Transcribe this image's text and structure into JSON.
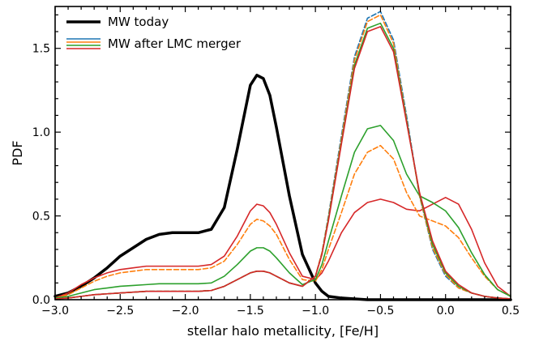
{
  "chart_data": {
    "type": "line",
    "title": "",
    "xlabel": "stellar halo metallicity,  [Fe/H]",
    "ylabel": "PDF",
    "xlim": [
      -3.0,
      0.5
    ],
    "ylim": [
      0.0,
      1.75
    ],
    "xticks": [
      -3.0,
      -2.5,
      -2.0,
      -1.5,
      -1.0,
      -0.5,
      0.0,
      0.5
    ],
    "xtick_labels": [
      "−3.0",
      "−2.5",
      "−2.0",
      "−1.5",
      "−1.0",
      "−0.5",
      "0.0",
      "0.5"
    ],
    "yticks": [
      0.0,
      0.5,
      1.0,
      1.5
    ],
    "ytick_labels": [
      "0.0",
      "0.5",
      "1.0",
      "1.5"
    ],
    "grid": false,
    "legend": {
      "placement": "top-left",
      "entries": [
        {
          "label": "MW today",
          "colors": [
            "#000000"
          ]
        },
        {
          "label": "MW after LMC merger",
          "colors": [
            "#1f77b4",
            "#ff7f0e",
            "#2ca02c",
            "#d62728"
          ]
        }
      ]
    },
    "x": [
      -3.0,
      -2.9,
      -2.8,
      -2.7,
      -2.6,
      -2.5,
      -2.4,
      -2.3,
      -2.2,
      -2.1,
      -2.0,
      -1.9,
      -1.8,
      -1.7,
      -1.6,
      -1.5,
      -1.45,
      -1.4,
      -1.35,
      -1.3,
      -1.2,
      -1.1,
      -1.0,
      -0.95,
      -0.9,
      -0.8,
      -0.7,
      -0.6,
      -0.5,
      -0.4,
      -0.3,
      -0.2,
      -0.1,
      0.0,
      0.1,
      0.2,
      0.3,
      0.4,
      0.5
    ],
    "series": [
      {
        "color": "#000000",
        "style": "solid",
        "width": 3.5,
        "values": [
          0.02,
          0.04,
          0.08,
          0.13,
          0.19,
          0.26,
          0.31,
          0.36,
          0.39,
          0.4,
          0.4,
          0.4,
          0.42,
          0.55,
          0.9,
          1.28,
          1.34,
          1.32,
          1.22,
          1.03,
          0.62,
          0.27,
          0.1,
          0.05,
          0.02,
          0.01,
          0.005,
          0.0,
          0.0,
          0.0,
          0.0,
          0.0,
          0.0,
          0.0,
          0.0,
          0.0,
          0.0,
          0.0,
          0.0
        ]
      },
      {
        "color": "#d62728",
        "style": "solid",
        "width": 1.6,
        "values": [
          0.01,
          0.04,
          0.09,
          0.13,
          0.16,
          0.18,
          0.19,
          0.2,
          0.2,
          0.2,
          0.2,
          0.2,
          0.21,
          0.26,
          0.38,
          0.53,
          0.57,
          0.56,
          0.52,
          0.45,
          0.28,
          0.14,
          0.12,
          0.16,
          0.23,
          0.4,
          0.52,
          0.58,
          0.6,
          0.58,
          0.54,
          0.53,
          0.57,
          0.61,
          0.57,
          0.42,
          0.22,
          0.08,
          0.02
        ]
      },
      {
        "color": "#ff7f0e",
        "style": "dashed",
        "width": 1.6,
        "values": [
          0.01,
          0.03,
          0.07,
          0.11,
          0.14,
          0.16,
          0.17,
          0.18,
          0.18,
          0.18,
          0.18,
          0.18,
          0.19,
          0.23,
          0.33,
          0.45,
          0.48,
          0.47,
          0.44,
          0.39,
          0.24,
          0.12,
          0.11,
          0.18,
          0.3,
          0.52,
          0.75,
          0.88,
          0.92,
          0.84,
          0.64,
          0.5,
          0.47,
          0.44,
          0.37,
          0.25,
          0.14,
          0.06,
          0.02
        ]
      },
      {
        "color": "#2ca02c",
        "style": "solid",
        "width": 1.6,
        "values": [
          0.01,
          0.02,
          0.04,
          0.06,
          0.07,
          0.08,
          0.085,
          0.09,
          0.095,
          0.095,
          0.095,
          0.095,
          0.1,
          0.14,
          0.21,
          0.29,
          0.31,
          0.31,
          0.29,
          0.25,
          0.16,
          0.09,
          0.12,
          0.21,
          0.35,
          0.62,
          0.88,
          1.02,
          1.04,
          0.95,
          0.75,
          0.62,
          0.58,
          0.53,
          0.43,
          0.28,
          0.15,
          0.06,
          0.02
        ]
      },
      {
        "color": "#1f77b4",
        "style": "dashed",
        "width": 1.6,
        "values": [
          0.005,
          0.01,
          0.02,
          0.03,
          0.035,
          0.04,
          0.045,
          0.05,
          0.05,
          0.05,
          0.05,
          0.05,
          0.055,
          0.08,
          0.12,
          0.16,
          0.17,
          0.17,
          0.16,
          0.14,
          0.1,
          0.08,
          0.14,
          0.28,
          0.5,
          0.98,
          1.45,
          1.68,
          1.72,
          1.55,
          1.1,
          0.62,
          0.3,
          0.14,
          0.07,
          0.04,
          0.02,
          0.01,
          0.005
        ]
      },
      {
        "color": "#ff7f0e",
        "style": "dashed",
        "width": 1.6,
        "values": [
          0.005,
          0.01,
          0.02,
          0.03,
          0.035,
          0.04,
          0.045,
          0.05,
          0.05,
          0.05,
          0.05,
          0.05,
          0.055,
          0.08,
          0.12,
          0.16,
          0.17,
          0.17,
          0.16,
          0.14,
          0.1,
          0.08,
          0.14,
          0.28,
          0.49,
          0.96,
          1.43,
          1.66,
          1.7,
          1.53,
          1.08,
          0.62,
          0.31,
          0.15,
          0.07,
          0.04,
          0.02,
          0.01,
          0.005
        ]
      },
      {
        "color": "#2ca02c",
        "style": "solid",
        "width": 1.6,
        "values": [
          0.005,
          0.01,
          0.02,
          0.03,
          0.035,
          0.04,
          0.045,
          0.05,
          0.05,
          0.05,
          0.05,
          0.05,
          0.055,
          0.08,
          0.12,
          0.16,
          0.17,
          0.17,
          0.16,
          0.14,
          0.1,
          0.08,
          0.14,
          0.27,
          0.48,
          0.94,
          1.4,
          1.62,
          1.65,
          1.5,
          1.07,
          0.63,
          0.33,
          0.16,
          0.08,
          0.04,
          0.02,
          0.01,
          0.005
        ]
      },
      {
        "color": "#d62728",
        "style": "solid",
        "width": 1.6,
        "values": [
          0.005,
          0.01,
          0.02,
          0.03,
          0.035,
          0.04,
          0.045,
          0.05,
          0.05,
          0.05,
          0.05,
          0.05,
          0.055,
          0.08,
          0.12,
          0.16,
          0.17,
          0.17,
          0.16,
          0.14,
          0.1,
          0.08,
          0.14,
          0.27,
          0.47,
          0.93,
          1.38,
          1.6,
          1.63,
          1.48,
          1.06,
          0.64,
          0.35,
          0.17,
          0.09,
          0.04,
          0.02,
          0.01,
          0.005
        ]
      }
    ]
  }
}
